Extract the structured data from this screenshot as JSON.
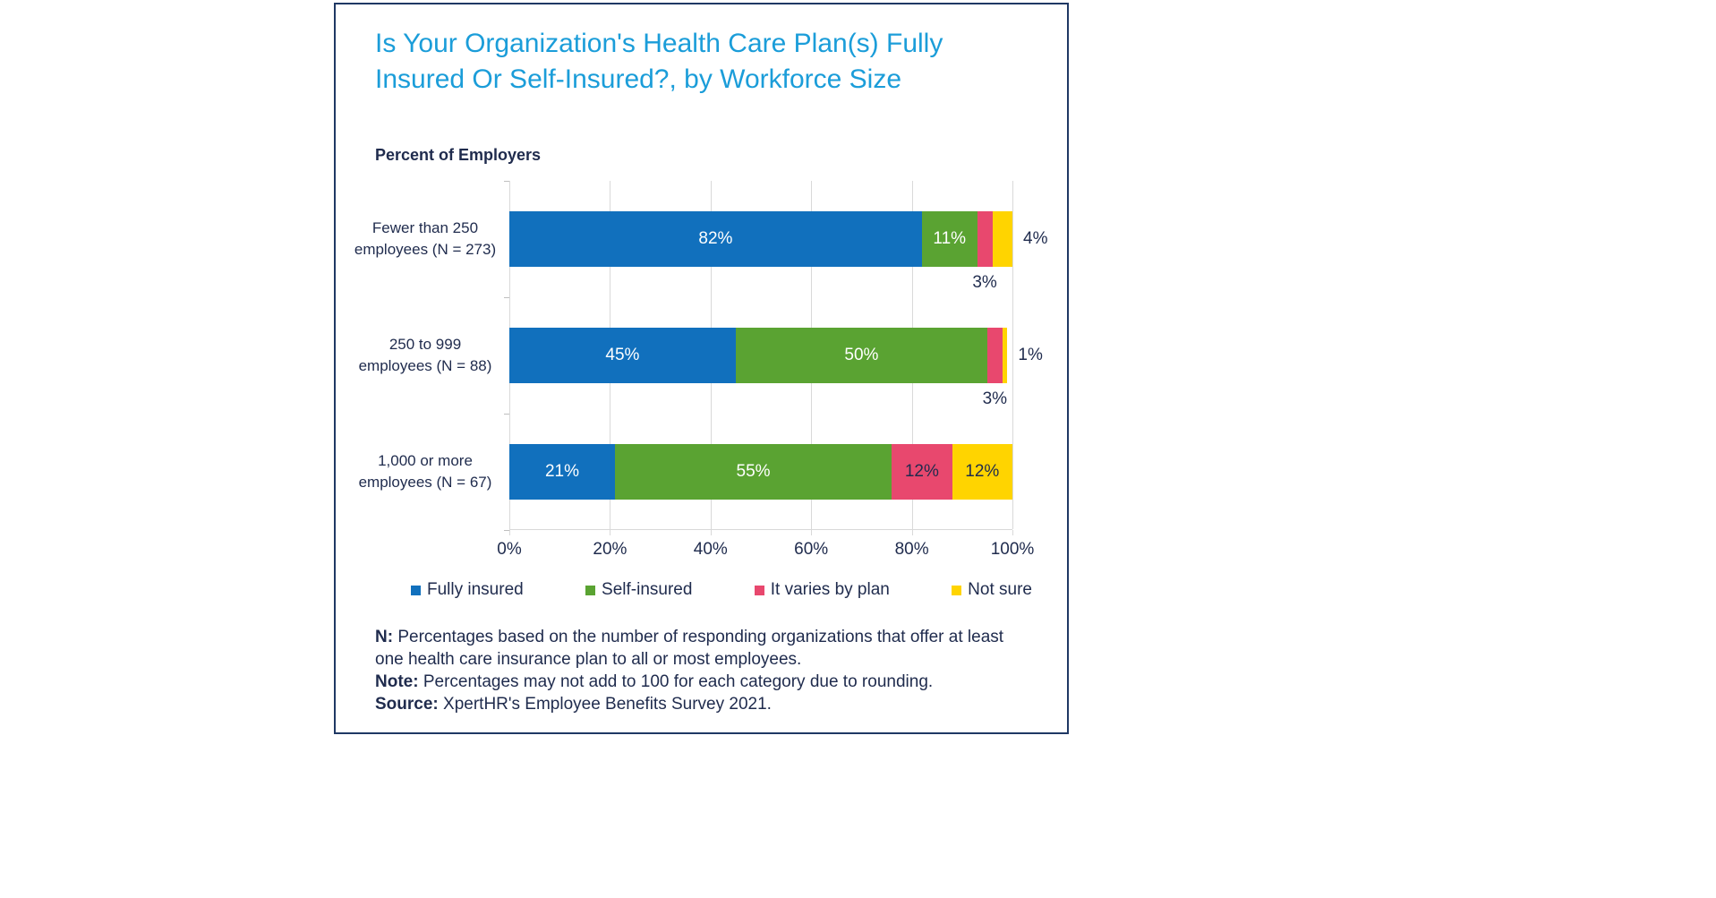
{
  "title": "Is Your Organization's Health Care Plan(s) Fully Insured Or Self-Insured?, by Workforce Size",
  "subtitle": "Percent of Employers",
  "chart_data": {
    "type": "bar",
    "orientation": "horizontal-stacked",
    "categories": [
      "Fewer than 250 employees (N = 273)",
      "250 to 999 employees (N = 88)",
      "1,000 or more employees (N = 67)"
    ],
    "series": [
      {
        "name": "Fully insured",
        "color": "#1170bd",
        "label_color": "#ffffff",
        "values": [
          82,
          45,
          21
        ]
      },
      {
        "name": "Self-insured",
        "color": "#5aa332",
        "label_color": "#ffffff",
        "values": [
          11,
          50,
          55
        ]
      },
      {
        "name": "It varies by plan",
        "color": "#e8486e",
        "label_color": "#1f2b4d",
        "values": [
          3,
          3,
          12
        ]
      },
      {
        "name": "Not sure",
        "color": "#ffd400",
        "label_color": "#1f2b4d",
        "values": [
          4,
          1,
          12
        ]
      }
    ],
    "label_positions": [
      [
        "inside",
        "inside",
        "below",
        "right"
      ],
      [
        "inside",
        "inside",
        "below",
        "right"
      ],
      [
        "inside",
        "inside",
        "inside",
        "inside"
      ]
    ],
    "xlim": [
      0,
      100
    ],
    "x_ticks": [
      "0%",
      "20%",
      "40%",
      "60%",
      "80%",
      "100%"
    ],
    "grid": "vertical",
    "legend_position": "bottom"
  },
  "notes": [
    {
      "label": "N:",
      "text": " Percentages based on the number of responding organizations that offer at least one health care insurance plan to all or most employees."
    },
    {
      "label": "Note:",
      "text": " Percentages may not add to 100 for each category due to rounding."
    },
    {
      "label": "Source:",
      "text": " XpertHR's Employee Benefits Survey 2021."
    }
  ]
}
